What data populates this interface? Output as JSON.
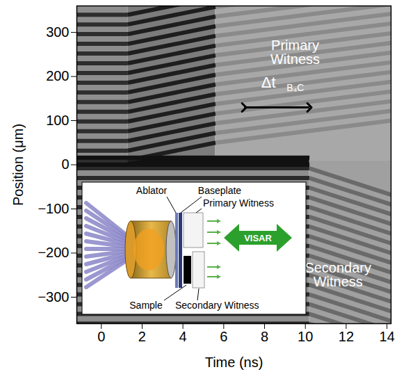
{
  "chart_data": {
    "type": "image",
    "x_label": "Time (ns)",
    "y_label": "Position (μm)",
    "xlim": [
      -1.2,
      14.2
    ],
    "ylim": [
      -360,
      360
    ],
    "xticks": [
      0,
      2,
      4,
      6,
      8,
      10,
      12,
      14
    ],
    "yticks": [
      -300,
      -200,
      -100,
      0,
      100,
      200,
      300
    ],
    "regions": [
      {
        "x": [
          -1.2,
          1.3
        ],
        "y": [
          10,
          360
        ],
        "spacing": 22,
        "shift": [
          0,
          0
        ],
        "background": "#8e8e8e",
        "color": "#2e2e2e"
      },
      {
        "x": [
          1.3,
          5.6
        ],
        "y": [
          10,
          360
        ],
        "spacing": 22,
        "shift": [
          0,
          40
        ],
        "background": "#7c7c7c",
        "color": "#1e1e1e"
      },
      {
        "x": [
          5.6,
          14.2
        ],
        "y": [
          10,
          360
        ],
        "spacing": 22,
        "shift": [
          40,
          90
        ],
        "background": "#a8a8a8",
        "color": "#8a8a8a"
      },
      {
        "x": [
          -1.2,
          10.2
        ],
        "y": [
          -360,
          10
        ],
        "spacing": 22,
        "shift": [
          0,
          0
        ],
        "background": "#8e8e8e",
        "color": "#2a2a2a"
      },
      {
        "x": [
          10.2,
          14.2
        ],
        "y": [
          -360,
          10
        ],
        "spacing": 22,
        "shift": [
          0,
          -60
        ],
        "background": "#a0a0a0",
        "color": "#6a6a6a"
      },
      {
        "x": [
          -1.2,
          10.2
        ],
        "y": [
          0,
          16
        ],
        "spacing": 16,
        "shift": [
          0,
          0
        ],
        "background": "#111111",
        "color": "#111111"
      }
    ],
    "annotations": [
      {
        "text": "Primary Witness",
        "x": 9.5,
        "y": 255
      },
      {
        "text": "Secondary Witness",
        "x": 11.6,
        "y": -250
      }
    ],
    "interval": {
      "label": "Δt",
      "subscript": "B₄C",
      "x": [
        7.0,
        10.2
      ],
      "y": 130
    }
  },
  "inset": {
    "labels": {
      "ablator": "Ablator",
      "baseplate": "Baseplate",
      "primary_witness": "Primary Witness",
      "sample": "Sample",
      "secondary_witness": "Secondary Witness",
      "visar": "VISAR"
    }
  }
}
